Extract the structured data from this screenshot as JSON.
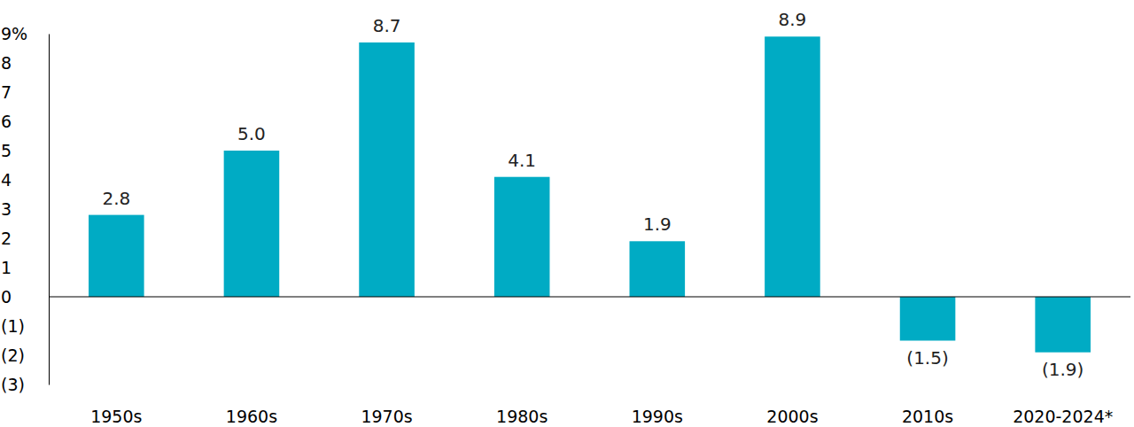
{
  "chart_data": {
    "type": "bar",
    "categories": [
      "1950s",
      "1960s",
      "1970s",
      "1980s",
      "1990s",
      "2000s",
      "2010s",
      "2020-2024*"
    ],
    "values": [
      2.8,
      5.0,
      8.7,
      4.1,
      1.9,
      8.9,
      -1.5,
      -1.9
    ],
    "value_labels": [
      "2.8",
      "5.0",
      "8.7",
      "4.1",
      "1.9",
      "8.9",
      "(1.5)",
      "(1.9)"
    ],
    "color": "#00abc4",
    "ylim": [
      -3,
      9
    ],
    "yticks": [
      {
        "value": 9,
        "label": "9%"
      },
      8,
      7,
      6,
      5,
      4,
      3,
      2,
      1,
      0,
      {
        "value": -1,
        "label": "(1)"
      },
      {
        "value": -2,
        "label": "(2)"
      },
      {
        "value": -3,
        "label": "(3)"
      }
    ],
    "grid": false,
    "data_labels": true
  }
}
